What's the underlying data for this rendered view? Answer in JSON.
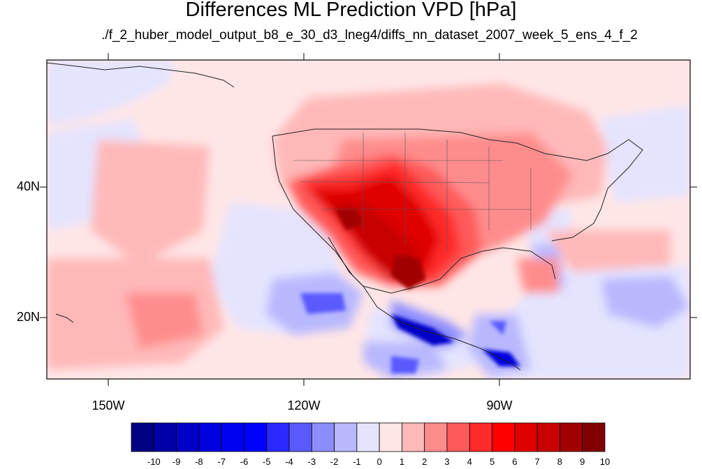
{
  "title": "Differences ML Prediction VPD [hPa]",
  "subtitle": "./f_2_huber_model_output_b8_e_30_d3_lneg4/diffs_nn_dataset_2007_week_5_ens_4_f_2",
  "axes": {
    "lat_labels": [
      "40N",
      "20N"
    ],
    "lon_labels": [
      "150W",
      "120W",
      "90W"
    ],
    "lon_range": [
      -160,
      -60
    ],
    "lat_range": [
      10,
      60
    ]
  },
  "colorbar": {
    "labels": [
      "-10",
      "-9",
      "-8",
      "-7",
      "-6",
      "-5",
      "-4",
      "-3",
      "-2",
      "-1",
      "0",
      "1",
      "2",
      "3",
      "4",
      "5",
      "6",
      "7",
      "8",
      "9",
      "10"
    ],
    "colors": [
      "#000080",
      "#0000a8",
      "#0000c8",
      "#0000e0",
      "#0000f0",
      "#0000ff",
      "#2a2aff",
      "#5a5aff",
      "#8c8cff",
      "#b8b8ff",
      "#e4e4ff",
      "#ffe6e6",
      "#ffb8b8",
      "#ff8c8c",
      "#ff5a5a",
      "#ff2a2a",
      "#ff0000",
      "#e00000",
      "#c80000",
      "#a00000",
      "#800000"
    ]
  }
}
